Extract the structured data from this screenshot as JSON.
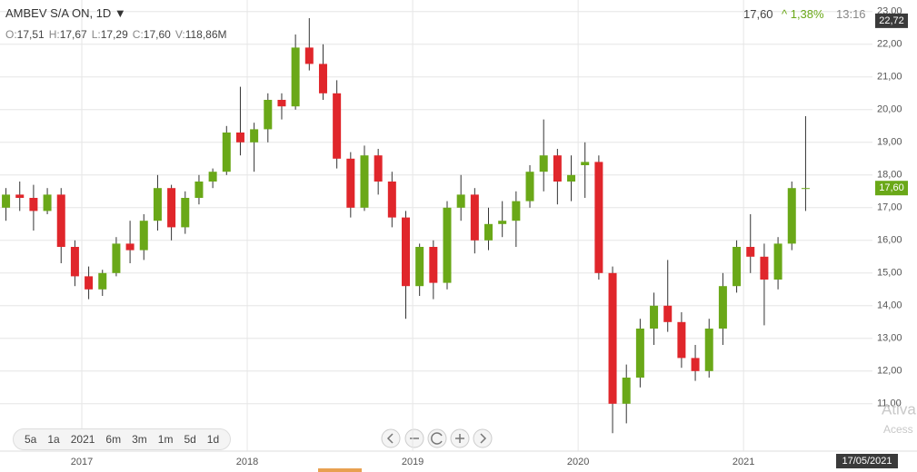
{
  "header": {
    "symbol": "AMBEV S/A ON, 1D ▼",
    "ohlcv": [
      [
        "O:",
        "17,51"
      ],
      [
        "H:",
        "17,67"
      ],
      [
        "L:",
        "17,29"
      ],
      [
        "C:",
        "17,60"
      ],
      [
        "V:",
        "118,86M"
      ]
    ],
    "last": "17,60",
    "change": "^ 1,38%",
    "time": "13:16"
  },
  "range_buttons": [
    "5a",
    "1a",
    "2021",
    "6m",
    "3m",
    "1m",
    "5d",
    "1d"
  ],
  "watermark": [
    "Ativa",
    "Acess"
  ],
  "chart_data": {
    "type": "candlestick",
    "categories": [
      null,
      null,
      null,
      null,
      null,
      null,
      "2017",
      null,
      null,
      null,
      null,
      null,
      null,
      null,
      null,
      null,
      null,
      null,
      "2018",
      null,
      null,
      null,
      null,
      null,
      null,
      null,
      null,
      null,
      null,
      null,
      "2019",
      null,
      null,
      null,
      null,
      null,
      null,
      null,
      null,
      null,
      null,
      null,
      "2020",
      null,
      null,
      null,
      null,
      null,
      null,
      null,
      null,
      null,
      null,
      null,
      "2021",
      null,
      null,
      null,
      null
    ],
    "open": [
      17.0,
      17.4,
      17.3,
      16.9,
      17.4,
      15.8,
      14.9,
      14.5,
      15.0,
      15.9,
      15.7,
      16.6,
      17.6,
      16.4,
      17.3,
      17.8,
      18.1,
      19.3,
      19.0,
      19.4,
      20.3,
      20.1,
      21.9,
      21.4,
      20.5,
      18.5,
      17.0,
      18.6,
      17.8,
      16.7,
      14.6,
      15.8,
      14.7,
      17.0,
      17.4,
      16.0,
      16.5,
      16.6,
      17.2,
      18.1,
      18.6,
      17.8,
      18.3,
      18.4,
      15.0,
      11.0,
      11.8,
      13.3,
      14.0,
      13.5,
      12.4,
      12.0,
      13.3,
      14.6,
      15.8,
      15.5,
      14.8,
      15.9,
      17.6
    ],
    "high": [
      17.6,
      17.8,
      17.7,
      17.6,
      17.6,
      16.0,
      15.2,
      15.1,
      16.1,
      16.6,
      16.8,
      18.0,
      17.7,
      17.5,
      18.0,
      18.2,
      19.5,
      20.7,
      19.6,
      20.5,
      20.5,
      22.3,
      22.8,
      22.0,
      20.9,
      18.7,
      18.9,
      18.8,
      18.1,
      16.9,
      15.9,
      16.0,
      17.2,
      18.0,
      17.6,
      17.0,
      17.2,
      17.5,
      18.3,
      19.7,
      18.8,
      18.6,
      19.0,
      18.6,
      15.2,
      12.2,
      13.6,
      14.4,
      15.4,
      13.8,
      12.8,
      13.6,
      15.0,
      16.0,
      16.8,
      15.9,
      16.1,
      17.8,
      19.8
    ],
    "low": [
      16.6,
      16.9,
      16.3,
      16.8,
      15.3,
      14.6,
      14.2,
      14.3,
      14.9,
      15.3,
      15.4,
      16.3,
      16.0,
      16.2,
      17.1,
      17.6,
      18.0,
      18.6,
      18.1,
      19.0,
      19.7,
      20.0,
      21.2,
      20.3,
      18.2,
      16.7,
      16.9,
      17.4,
      16.4,
      13.6,
      14.3,
      14.2,
      14.5,
      16.6,
      15.6,
      15.7,
      16.1,
      15.8,
      17.0,
      17.5,
      17.1,
      17.2,
      17.3,
      14.8,
      10.1,
      10.4,
      11.5,
      12.8,
      13.2,
      12.1,
      11.7,
      11.8,
      12.8,
      14.4,
      15.0,
      13.4,
      14.5,
      15.7,
      16.9
    ],
    "close": [
      17.4,
      17.3,
      16.9,
      17.4,
      15.8,
      14.9,
      14.5,
      15.0,
      15.9,
      15.7,
      16.6,
      17.6,
      16.4,
      17.3,
      17.8,
      18.1,
      19.3,
      19.0,
      19.4,
      20.3,
      20.1,
      21.9,
      21.4,
      20.5,
      18.5,
      17.0,
      18.6,
      17.8,
      16.7,
      14.6,
      15.8,
      14.7,
      17.0,
      17.4,
      16.0,
      16.5,
      16.6,
      17.2,
      18.1,
      18.6,
      17.8,
      18.0,
      18.4,
      15.0,
      11.0,
      11.8,
      13.3,
      14.0,
      13.5,
      12.4,
      12.0,
      13.3,
      14.6,
      15.8,
      15.5,
      14.8,
      15.9,
      17.6,
      17.6
    ],
    "up_color": "#6aa818",
    "down_color": "#e0262b",
    "wick_color": "#333333",
    "ylim": [
      9.55,
      23.05
    ],
    "yticks": [
      {
        "value": 11,
        "label": "11,00"
      },
      {
        "value": 12,
        "label": "12,00"
      },
      {
        "value": 13,
        "label": "13,00"
      },
      {
        "value": 14,
        "label": "14,00"
      },
      {
        "value": 15,
        "label": "15,00"
      },
      {
        "value": 16,
        "label": "16,00"
      },
      {
        "value": 17,
        "label": "17,00"
      },
      {
        "value": 18,
        "label": "18,00"
      },
      {
        "value": 19,
        "label": "19,00"
      },
      {
        "value": 20,
        "label": "20,00"
      },
      {
        "value": 21,
        "label": "21,00"
      },
      {
        "value": 22,
        "label": "22,00"
      },
      {
        "value": 23,
        "label": "23,00"
      }
    ],
    "price_markers": [
      {
        "value": 22.72,
        "label": "22,72",
        "color": "#3a3a3a"
      },
      {
        "value": 17.6,
        "label": "17,60",
        "color": "#6aa818"
      }
    ],
    "last_date": "17/05/2021",
    "grid": true
  }
}
